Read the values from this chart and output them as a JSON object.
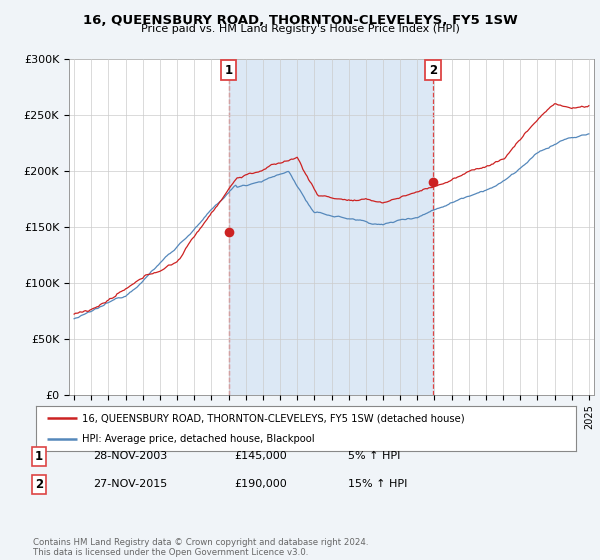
{
  "title": "16, QUEENSBURY ROAD, THORNTON-CLEVELEYS, FY5 1SW",
  "subtitle": "Price paid vs. HM Land Registry's House Price Index (HPI)",
  "legend_line1": "16, QUEENSBURY ROAD, THORNTON-CLEVELEYS, FY5 1SW (detached house)",
  "legend_line2": "HPI: Average price, detached house, Blackpool",
  "transaction1_date": "28-NOV-2003",
  "transaction1_price": "£145,000",
  "transaction1_change": "5% ↑ HPI",
  "transaction2_date": "27-NOV-2015",
  "transaction2_price": "£190,000",
  "transaction2_change": "15% ↑ HPI",
  "footnote": "Contains HM Land Registry data © Crown copyright and database right 2024.\nThis data is licensed under the Open Government Licence v3.0.",
  "hpi_color": "#5588bb",
  "price_color": "#cc2222",
  "vline_color": "#dd4444",
  "shade_color": "#dce8f5",
  "background_color": "#f0f4f8",
  "plot_bg_color": "#ffffff",
  "ylim": [
    0,
    300000
  ],
  "yticks": [
    0,
    50000,
    100000,
    150000,
    200000,
    250000,
    300000
  ],
  "xlim_left": 1994.7,
  "xlim_right": 2025.3,
  "years_start": 1995,
  "years_end": 2025,
  "transaction1_year": 2004.0,
  "transaction2_year": 2015.92,
  "price_at_t1": 145000,
  "price_at_t2": 190000
}
